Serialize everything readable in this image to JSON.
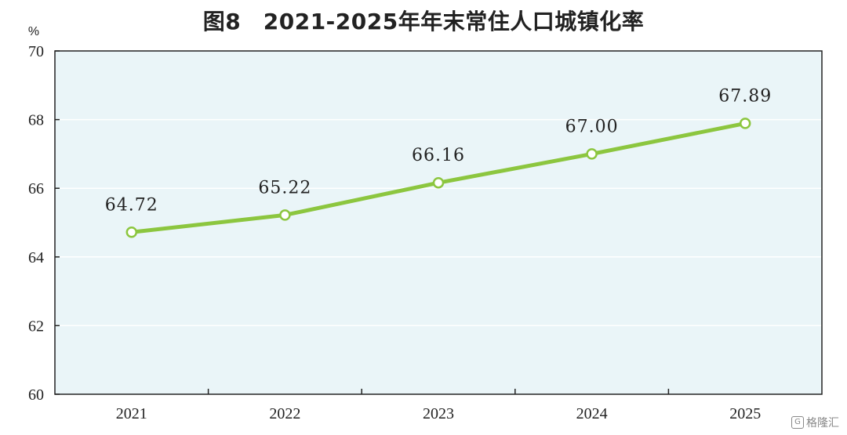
{
  "chart_data": {
    "type": "line",
    "title": "图8　2021-2025年年末常住人口城镇化率",
    "ylabel": "%",
    "xlabel": "",
    "categories": [
      "2021",
      "2022",
      "2023",
      "2024",
      "2025"
    ],
    "series": [
      {
        "values": [
          64.72,
          65.22,
          66.16,
          67.0,
          67.89
        ]
      }
    ],
    "value_labels": [
      "64.72",
      "65.22",
      "66.16",
      "67.00",
      "67.89"
    ],
    "ylim": [
      60,
      70
    ],
    "yticks": [
      60,
      62,
      64,
      66,
      68,
      70
    ],
    "grid": true,
    "legend": "none",
    "colors": {
      "line": "#8cc63f",
      "plot_bg": "#eaf5f8",
      "grid": "#ffffff",
      "axis": "#222222"
    }
  },
  "watermark": {
    "text": "格隆汇",
    "icon": "G"
  }
}
